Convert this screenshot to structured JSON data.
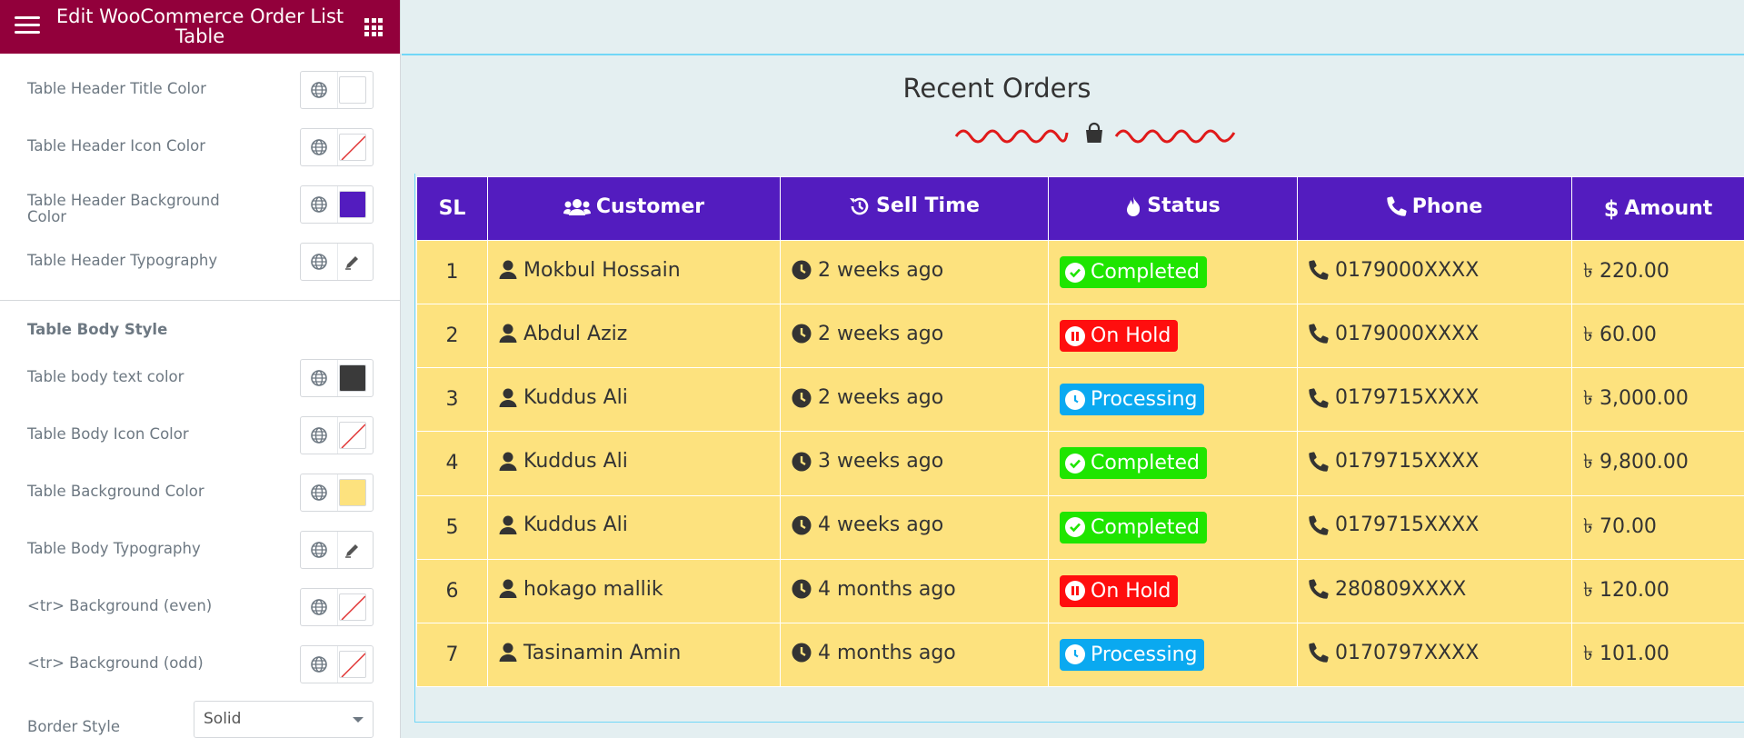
{
  "sidebar": {
    "title": "Edit WooCommerce Order List Table",
    "controls": [
      {
        "label": "Table Header Title Color",
        "swatch": "#ffffff",
        "type": "color"
      },
      {
        "label": "Table Header Icon Color",
        "swatch": "none",
        "type": "color"
      },
      {
        "label": "Table Header Background Color",
        "swatch": "#531cbf",
        "type": "color"
      },
      {
        "label": "Table Header Typography",
        "swatch": "edit",
        "type": "typography"
      }
    ],
    "section_title": "Table Body Style",
    "body_controls": [
      {
        "label": "Table body text color",
        "swatch": "#3a3a3a",
        "type": "color"
      },
      {
        "label": "Table Body Icon Color",
        "swatch": "none",
        "type": "color"
      },
      {
        "label": "Table Background Color",
        "swatch": "#fde27e",
        "type": "color"
      },
      {
        "label": "Table Body Typography",
        "swatch": "edit",
        "type": "typography"
      },
      {
        "label": "<tr> Background (even)",
        "swatch": "none",
        "type": "color"
      },
      {
        "label": "<tr> Background (odd)",
        "swatch": "none",
        "type": "color"
      }
    ],
    "border_style": {
      "label": "Border Style",
      "value": "Solid"
    }
  },
  "widget": {
    "title": "Recent Orders"
  },
  "table": {
    "headers": {
      "sl": "SL",
      "customer": "Customer",
      "sell_time": "Sell Time",
      "status": "Status",
      "phone": "Phone",
      "amount": "Amount"
    },
    "rows": [
      {
        "sl": "1",
        "customer": "Mokbul Hossain",
        "time": "2 weeks ago",
        "status": "Completed",
        "phone": "0179000XXXX",
        "amount": "৳ 220.00"
      },
      {
        "sl": "2",
        "customer": "Abdul Aziz",
        "time": "2 weeks ago",
        "status": "On Hold",
        "phone": "0179000XXXX",
        "amount": "৳ 60.00"
      },
      {
        "sl": "3",
        "customer": "Kuddus Ali",
        "time": "2 weeks ago",
        "status": "Processing",
        "phone": "0179715XXXX",
        "amount": "৳ 3,000.00"
      },
      {
        "sl": "4",
        "customer": "Kuddus Ali",
        "time": "3 weeks ago",
        "status": "Completed",
        "phone": "0179715XXXX",
        "amount": "৳ 9,800.00"
      },
      {
        "sl": "5",
        "customer": "Kuddus Ali",
        "time": "4 weeks ago",
        "status": "Completed",
        "phone": "0179715XXXX",
        "amount": "৳ 70.00"
      },
      {
        "sl": "6",
        "customer": "hokago mallik",
        "time": "4 months ago",
        "status": "On Hold",
        "phone": "280809XXXX",
        "amount": "৳ 120.00"
      },
      {
        "sl": "7",
        "customer": "Tasinamin Amin",
        "time": "4 months ago",
        "status": "Processing",
        "phone": "0170797XXXX",
        "amount": "৳ 101.00"
      }
    ]
  },
  "colors": {
    "brand": "#92003b",
    "header_bg": "#531cbf",
    "body_bg": "#fde27e",
    "completed": "#1fe500",
    "on_hold": "#ff0e0e",
    "processing": "#0aa9f0",
    "outline": "#71d7f7",
    "divider_wave": "#e01a1a"
  },
  "icons": {
    "customer_header": "users-icon",
    "sell_time_header": "history-icon",
    "status_header": "fire-icon",
    "phone_header": "phone-icon",
    "amount_header": "dollar-icon",
    "row_customer": "user-icon",
    "row_time": "clock-icon",
    "row_phone": "phone-icon",
    "completed": "check-circle-icon",
    "on_hold": "pause-circle-icon",
    "processing": "clock-icon",
    "divider": "shopping-bag-icon"
  }
}
